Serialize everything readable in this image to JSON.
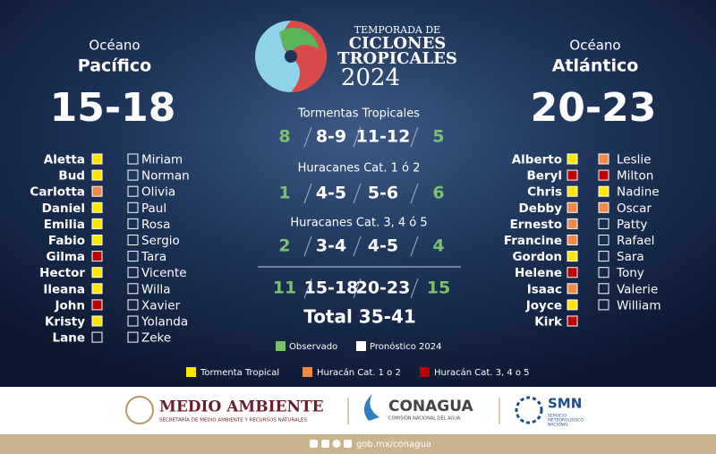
{
  "header": {
    "title": [
      "TEMPORADA DE",
      "CICLONES",
      "TROPICALES",
      "2024"
    ]
  },
  "categories": [
    {
      "label": "Tormenta Tropical",
      "color": "#ffe600"
    },
    {
      "label": "Huracán Cat. 1 o 2",
      "color": "#f08a4b"
    },
    {
      "label": "Huracán Cat. 3, 4 o 5",
      "color": "#c00000"
    }
  ],
  "pacific": {
    "label": "Océano",
    "name": "Pacífico",
    "forecast": "15-18",
    "storms": [
      {
        "name": "Aletta",
        "category": 0
      },
      {
        "name": "Bud",
        "category": 0
      },
      {
        "name": "Carlotta",
        "category": 1
      },
      {
        "name": "Daniel",
        "category": 0
      },
      {
        "name": "Emilia",
        "category": 0
      },
      {
        "name": "Fabio",
        "category": 0
      },
      {
        "name": "Gilma",
        "category": 2
      },
      {
        "name": "Hector",
        "category": 0
      },
      {
        "name": "Ileana",
        "category": 0
      },
      {
        "name": "John",
        "category": 2
      },
      {
        "name": "Kristy",
        "category": 0
      },
      {
        "name": "Lane",
        "category": null
      },
      {
        "name": "Miriam",
        "category": null
      },
      {
        "name": "Norman",
        "category": null
      },
      {
        "name": "Olivia",
        "category": null
      },
      {
        "name": "Paul",
        "category": null
      },
      {
        "name": "Rosa",
        "category": null
      },
      {
        "name": "Sergio",
        "category": null
      },
      {
        "name": "Tara",
        "category": null
      },
      {
        "name": "Vicente",
        "category": null
      },
      {
        "name": "Willa",
        "category": null
      },
      {
        "name": "Xavier",
        "category": null
      },
      {
        "name": "Yolanda",
        "category": null
      },
      {
        "name": "Zeke",
        "category": null
      }
    ]
  },
  "atlantic": {
    "label": "Océano",
    "name": "Atlántico",
    "forecast": "20-23",
    "storms": [
      {
        "name": "Alberto",
        "category": 0
      },
      {
        "name": "Beryl",
        "category": 2
      },
      {
        "name": "Chris",
        "category": 0
      },
      {
        "name": "Debby",
        "category": 1
      },
      {
        "name": "Ernesto",
        "category": 1
      },
      {
        "name": "Francine",
        "category": 1
      },
      {
        "name": "Gordon",
        "category": 0
      },
      {
        "name": "Helene",
        "category": 2
      },
      {
        "name": "Isaac",
        "category": 1
      },
      {
        "name": "Joyce",
        "category": 0
      },
      {
        "name": "Kirk",
        "category": 2
      },
      {
        "name": "Leslie",
        "category": 1
      },
      {
        "name": "Milton",
        "category": 2
      },
      {
        "name": "Nadine",
        "category": 0
      },
      {
        "name": "Oscar",
        "category": 1
      },
      {
        "name": "Patty",
        "category": null
      },
      {
        "name": "Rafael",
        "category": null
      },
      {
        "name": "Sara",
        "category": null
      },
      {
        "name": "Tony",
        "category": null
      },
      {
        "name": "Valerie",
        "category": null
      },
      {
        "name": "William",
        "category": null
      }
    ]
  },
  "summary": {
    "rows": [
      {
        "heading": "Tormentas Tropicales",
        "pacific_observed": 8,
        "pacific_forecast": "8-9",
        "atlantic_forecast": "11-12",
        "atlantic_observed": 5
      },
      {
        "heading": "Huracanes Cat. 1 ó 2",
        "pacific_observed": 1,
        "pacific_forecast": "4-5",
        "atlantic_forecast": "5-6",
        "atlantic_observed": 6
      },
      {
        "heading": "Huracanes Cat. 3, 4 ó 5",
        "pacific_observed": 2,
        "pacific_forecast": "3-4",
        "atlantic_forecast": "4-5",
        "atlantic_observed": 4
      }
    ],
    "totals": {
      "pacific_observed": 11,
      "pacific_forecast": "15-18",
      "atlantic_forecast": "20-23",
      "atlantic_observed": 15
    },
    "grand_total": "Total 35-41"
  },
  "legend": [
    {
      "label": "Observado",
      "color": "#7cc26e"
    },
    {
      "label": "Pronóstico 2024",
      "color": "#ffffff"
    }
  ],
  "footer": {
    "semarnat": {
      "name": "MEDIO AMBIENTE",
      "subtitle": "SECRETARÍA DE MEDIO AMBIENTE Y RECURSOS NATURALES"
    },
    "conagua": {
      "name": "CONAGUA",
      "subtitle": "COMISIÓN NACIONAL DEL AGUA"
    },
    "smn": {
      "name": "SMN",
      "subtitle": [
        "SERVICIO",
        "METEOROLÓGICO",
        "NACIONAL"
      ]
    },
    "url": "gob.mx/conagua"
  }
}
